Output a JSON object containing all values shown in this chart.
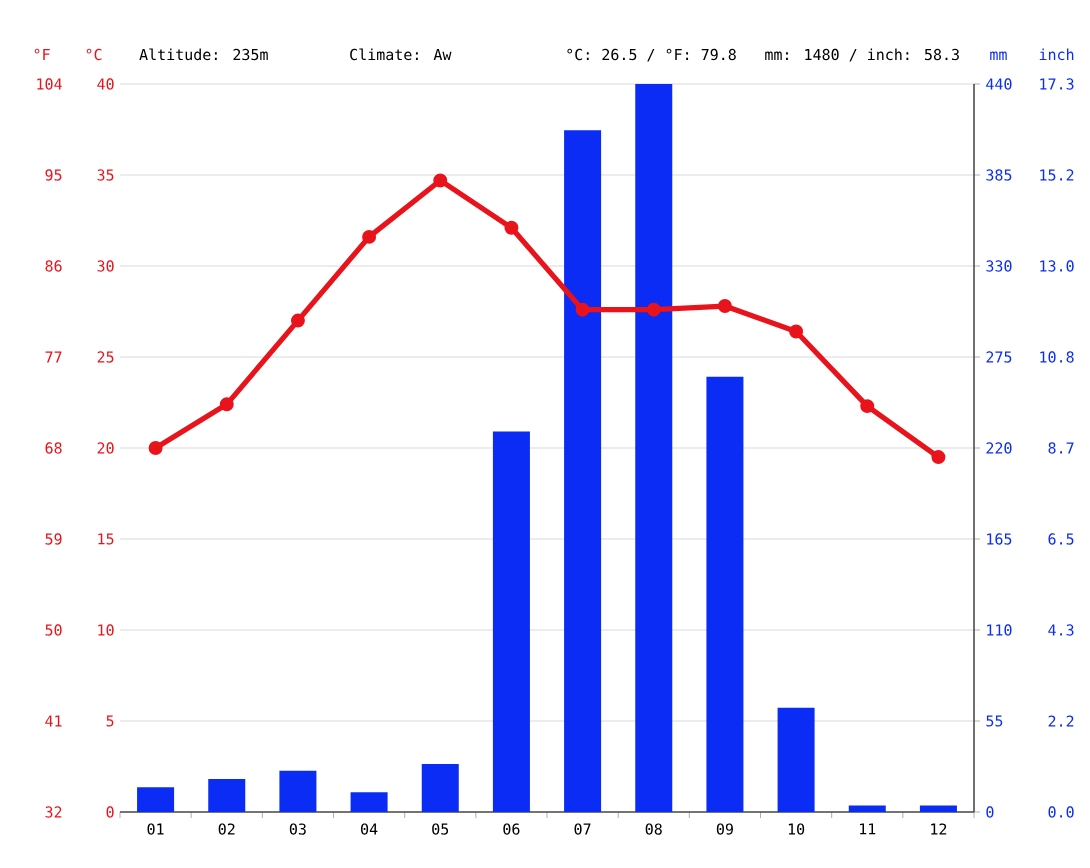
{
  "chart_data": {
    "type": "bar",
    "categories": [
      "01",
      "02",
      "03",
      "04",
      "05",
      "06",
      "07",
      "08",
      "09",
      "10",
      "11",
      "12"
    ],
    "series": [
      {
        "axis": "y2",
        "color": "#0a2cf5",
        "values": [
          15,
          20,
          25,
          12,
          29,
          230,
          412,
          440,
          263,
          63,
          4,
          4
        ]
      },
      {
        "type": "line",
        "axis": "y",
        "color": "#e8131b",
        "values": [
          20.0,
          22.4,
          27.0,
          31.6,
          34.7,
          32.1,
          27.6,
          27.6,
          27.8,
          26.4,
          22.3,
          19.5
        ]
      }
    ],
    "ylabel": "°C",
    "ylim": [
      0,
      40
    ],
    "yticks": [
      0,
      5,
      10,
      15,
      20,
      25,
      30,
      35,
      40
    ],
    "y2label": "mm",
    "y2lim": [
      0,
      440
    ],
    "y2ticks": [
      0,
      55,
      110,
      165,
      220,
      275,
      330,
      385,
      440
    ],
    "y3label": "°F",
    "y3lim": [
      32,
      104
    ],
    "y3ticks": [
      32,
      41,
      50,
      59,
      68,
      77,
      86,
      95,
      104
    ],
    "grid": "y",
    "marker": "circle",
    "annotations": [
      "Altitude: 235m",
      "Climate: Aw",
      "°C: 26.5 / °F: 79.8",
      "mm: 1480 / inch: 58.3",
      "inch",
      "0.0",
      "2.2",
      "4.3",
      "6.5",
      "8.7",
      "10.8",
      "13.0",
      "15.2",
      "17.3"
    ]
  }
}
